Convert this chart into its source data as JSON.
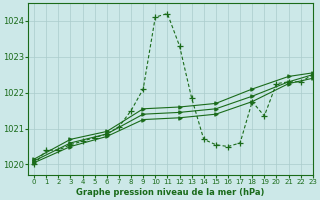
{
  "background_color": "#cce8e8",
  "grid_color": "#aacccc",
  "line_color": "#1a6b1a",
  "title": "Graphe pression niveau de la mer (hPa)",
  "xlim": [
    -0.5,
    23
  ],
  "ylim": [
    1019.7,
    1024.5
  ],
  "yticks": [
    1020,
    1021,
    1022,
    1023,
    1024
  ],
  "xticks": [
    0,
    1,
    2,
    3,
    4,
    5,
    6,
    7,
    8,
    9,
    10,
    11,
    12,
    13,
    14,
    15,
    16,
    17,
    18,
    19,
    20,
    21,
    22,
    23
  ],
  "dashed_series": {
    "x": [
      0,
      1,
      2,
      3,
      4,
      5,
      6,
      7,
      8,
      9,
      10,
      11,
      12,
      13,
      14,
      15,
      16,
      17,
      18,
      19,
      20,
      21,
      22,
      23
    ],
    "y": [
      1020.0,
      1020.4,
      1020.4,
      1020.55,
      1020.65,
      1020.75,
      1020.85,
      1021.05,
      1021.5,
      1022.1,
      1024.1,
      1024.2,
      1023.3,
      1021.85,
      1020.7,
      1020.55,
      1020.5,
      1020.6,
      1021.75,
      1021.35,
      1022.25,
      1022.3,
      1022.3,
      1022.5
    ]
  },
  "solid_series": [
    {
      "x": [
        0,
        3,
        6,
        9,
        12,
        15,
        18,
        21,
        23
      ],
      "y": [
        1020.1,
        1020.6,
        1020.85,
        1021.4,
        1021.45,
        1021.55,
        1021.9,
        1022.3,
        1022.5
      ]
    },
    {
      "x": [
        0,
        3,
        6,
        9,
        12,
        15,
        18,
        21,
        23
      ],
      "y": [
        1020.05,
        1020.5,
        1020.78,
        1021.25,
        1021.3,
        1021.4,
        1021.75,
        1022.25,
        1022.4
      ]
    },
    {
      "x": [
        0,
        3,
        6,
        9,
        12,
        15,
        18,
        21,
        23
      ],
      "y": [
        1020.15,
        1020.7,
        1020.92,
        1021.55,
        1021.6,
        1021.7,
        1022.1,
        1022.45,
        1022.55
      ]
    }
  ]
}
